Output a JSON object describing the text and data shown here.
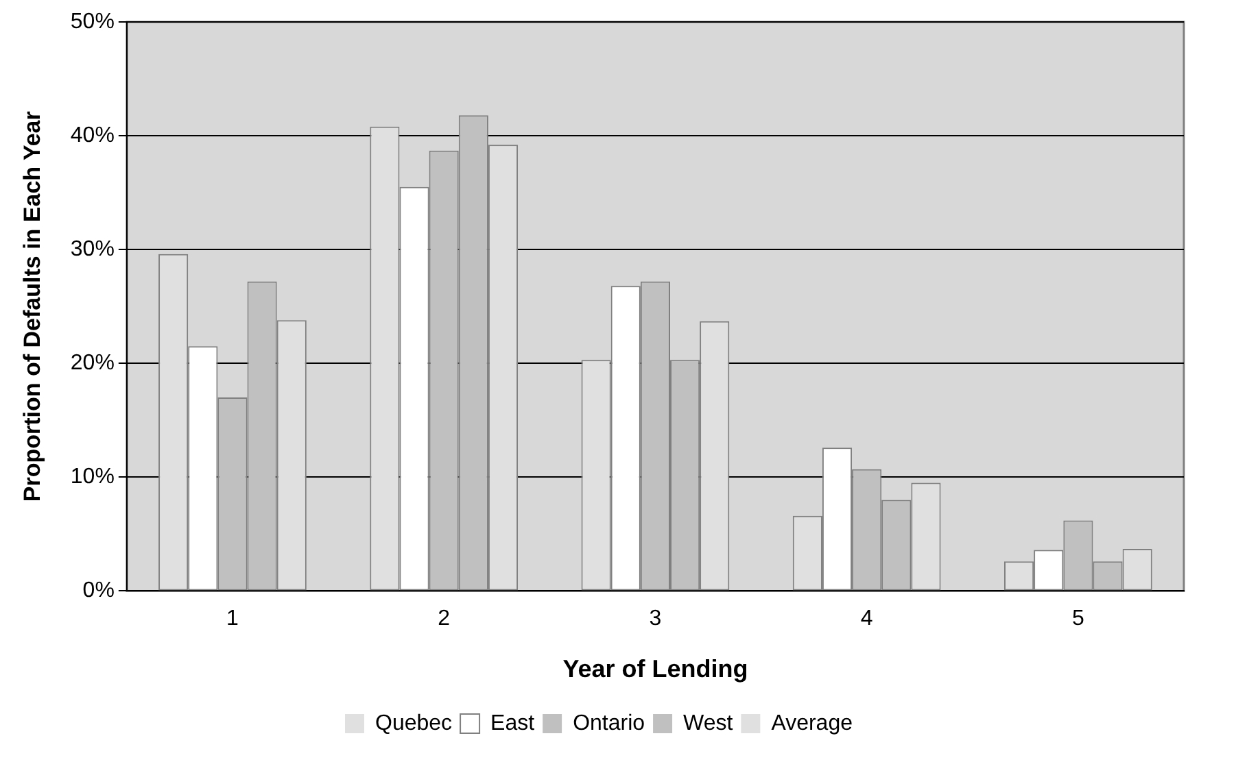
{
  "chart_data": {
    "type": "bar",
    "xlabel": "Year of Lending",
    "ylabel": "Proportion of Defaults in Each Year",
    "categories": [
      "1",
      "2",
      "3",
      "4",
      "5"
    ],
    "series": [
      {
        "name": "Quebec",
        "color": "#e0e0e0",
        "values": [
          29.6,
          40.8,
          20.3,
          6.6,
          2.6
        ]
      },
      {
        "name": "East",
        "color": "#ffffff",
        "values": [
          21.5,
          35.5,
          26.8,
          12.6,
          3.6
        ]
      },
      {
        "name": "Ontario",
        "color": "#c0c0c0",
        "values": [
          17.0,
          38.7,
          27.2,
          10.7,
          6.2
        ]
      },
      {
        "name": "West",
        "color": "#c0c0c0",
        "values": [
          27.2,
          41.8,
          20.3,
          8.0,
          2.6
        ]
      },
      {
        "name": "Average",
        "color": "#e0e0e0",
        "values": [
          23.8,
          39.2,
          23.7,
          9.5,
          3.7
        ]
      }
    ],
    "ylim": [
      0,
      50
    ],
    "yticks": [
      {
        "value": 0,
        "label": "0%"
      },
      {
        "value": 10,
        "label": "10%"
      },
      {
        "value": 20,
        "label": "20%"
      },
      {
        "value": 30,
        "label": "30%"
      },
      {
        "value": 40,
        "label": "40%"
      },
      {
        "value": 50,
        "label": "50%"
      }
    ],
    "grid": "y",
    "legend": "bottom"
  }
}
